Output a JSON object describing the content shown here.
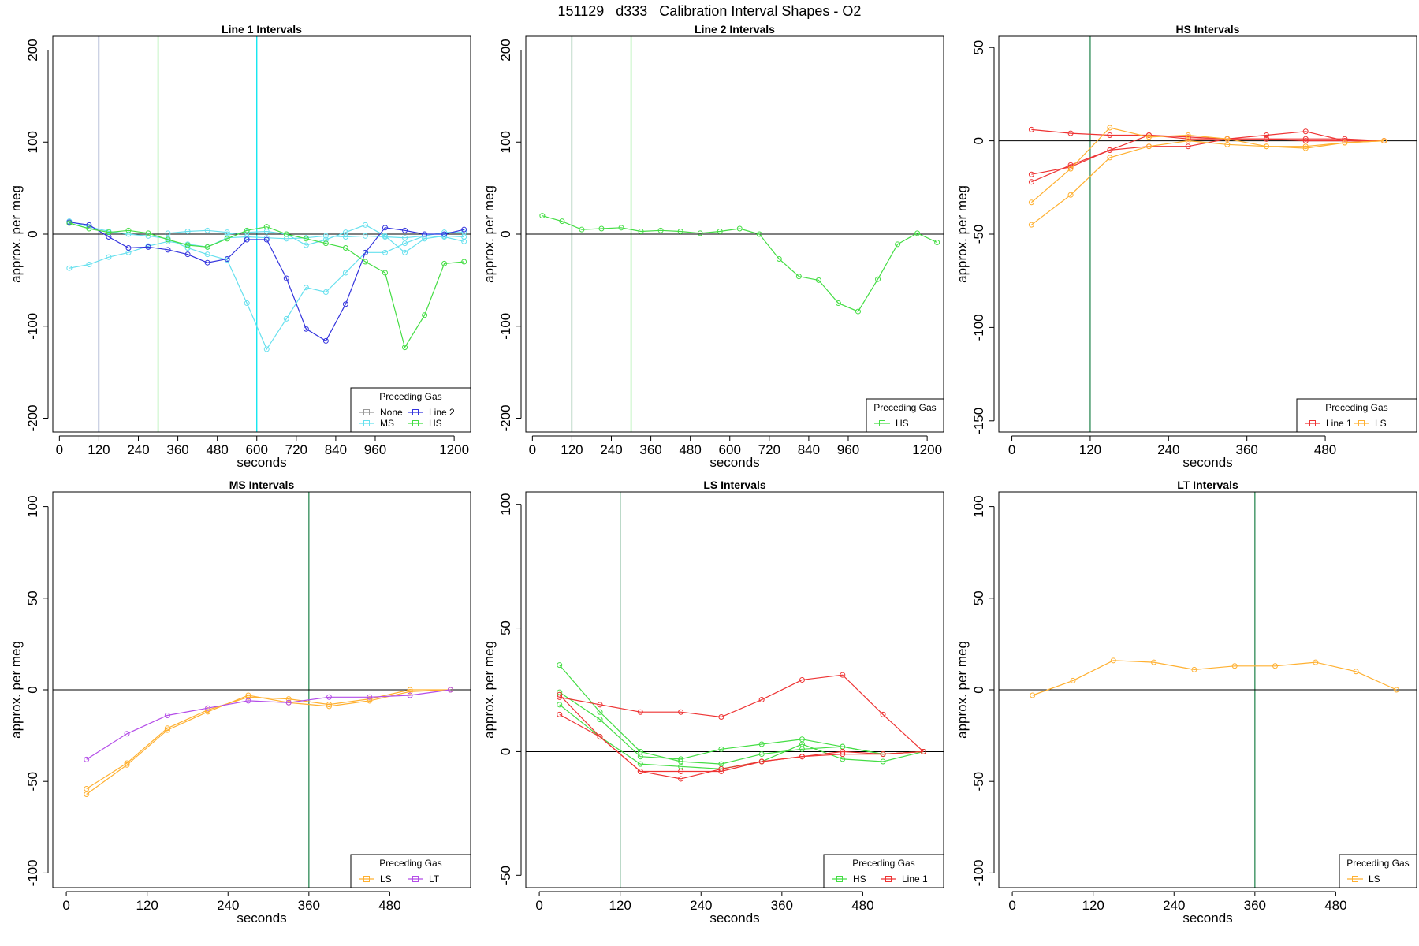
{
  "figure_title": "151129   d333   Calibration Interval Shapes - O2",
  "legend_title": "Preceding Gas",
  "chart_data": [
    {
      "type": "line",
      "title": "Line 1 Intervals",
      "xlabel": "seconds",
      "ylabel": "approx. per meg",
      "xlim": [
        -20,
        1250
      ],
      "ylim": [
        -215,
        215
      ],
      "xticks": [
        0,
        120,
        240,
        360,
        480,
        600,
        720,
        840,
        960,
        1200
      ],
      "yticks": [
        -200,
        -100,
        0,
        100,
        200
      ],
      "hline": 0,
      "vlines": [
        {
          "x": 120,
          "color": "#1e3a8a"
        },
        {
          "x": 300,
          "color": "#44dd44"
        },
        {
          "x": 600,
          "color": "#00e5ee"
        }
      ],
      "legend": {
        "position": "bottom-right",
        "columns": 2,
        "entries": [
          {
            "name": "None",
            "color": "#999999"
          },
          {
            "name": "Line 2",
            "color": "#3333dd"
          },
          {
            "name": "MS",
            "color": "#66e0ee"
          },
          {
            "name": "HS",
            "color": "#44dd44"
          }
        ]
      },
      "series": [
        {
          "name": "MS",
          "color": "#66e0ee",
          "x": [
            30,
            90,
            150,
            210,
            270,
            330,
            390,
            450,
            510,
            570,
            630,
            690,
            750,
            810,
            870,
            930,
            990,
            1050,
            1110,
            1170,
            1230
          ],
          "y": [
            -37,
            -33,
            -25,
            -20,
            -13,
            -8,
            -11,
            -14,
            -4,
            -3,
            -4,
            -5,
            -4,
            -2,
            -3,
            -2,
            -3,
            -4,
            -2,
            -3,
            -8
          ]
        },
        {
          "name": "MS",
          "color": "#66e0ee",
          "x": [
            30,
            90,
            150,
            210,
            270,
            330,
            390,
            450,
            510,
            570,
            630,
            690,
            750,
            810,
            870,
            930,
            990,
            1050,
            1110,
            1170,
            1230
          ],
          "y": [
            14,
            8,
            3,
            0,
            -2,
            -5,
            -15,
            -22,
            -28,
            -75,
            -125,
            -92,
            -58,
            -63,
            -42,
            -20,
            -20,
            -10,
            -2,
            2,
            2
          ]
        },
        {
          "name": "MS",
          "color": "#66e0ee",
          "x": [
            510,
            570,
            630,
            690,
            750,
            810,
            870,
            930,
            990,
            1050,
            1110,
            1170,
            1230
          ],
          "y": [
            0,
            2,
            3,
            0,
            -12,
            -6,
            2,
            10,
            -2,
            -20,
            -5,
            -2,
            -3
          ]
        },
        {
          "name": "MS",
          "color": "#66e0ee",
          "x": [
            330,
            390,
            450,
            510
          ],
          "y": [
            1,
            3,
            4,
            2
          ]
        },
        {
          "name": "Line 2",
          "color": "#3333dd",
          "x": [
            30,
            90,
            150,
            210,
            270,
            330,
            390,
            450,
            510,
            570,
            630,
            690,
            750,
            810,
            870,
            930,
            990,
            1050,
            1110,
            1170,
            1230
          ],
          "y": [
            13,
            10,
            -3,
            -15,
            -14,
            -17,
            -22,
            -31,
            -27,
            -6,
            -6,
            -48,
            -103,
            -116,
            -76,
            -20,
            7,
            4,
            0,
            0,
            5
          ]
        },
        {
          "name": "HS",
          "color": "#44dd44",
          "x": [
            30,
            90,
            150,
            210,
            270,
            330,
            390,
            450,
            510,
            570,
            630,
            690,
            750,
            810,
            870,
            930,
            990,
            1050,
            1110,
            1170,
            1230
          ],
          "y": [
            12,
            6,
            2,
            4,
            1,
            -6,
            -12,
            -14,
            -5,
            4,
            8,
            0,
            -5,
            -10,
            -15,
            -30,
            -42,
            -123,
            -88,
            -32,
            -30
          ]
        }
      ]
    },
    {
      "type": "line",
      "title": "Line 2 Intervals",
      "xlabel": "seconds",
      "ylabel": "approx. per meg",
      "xlim": [
        -20,
        1250
      ],
      "ylim": [
        -215,
        215
      ],
      "xticks": [
        0,
        120,
        240,
        360,
        480,
        600,
        720,
        840,
        960,
        1200
      ],
      "yticks": [
        -200,
        -100,
        0,
        100,
        200
      ],
      "hline": 0,
      "vlines": [
        {
          "x": 120,
          "color": "#2e8b57"
        },
        {
          "x": 300,
          "color": "#44dd44"
        }
      ],
      "legend": {
        "position": "bottom-right",
        "columns": 1,
        "entries": [
          {
            "name": "HS",
            "color": "#44dd44"
          }
        ]
      },
      "series": [
        {
          "name": "HS",
          "color": "#44dd44",
          "x": [
            30,
            90,
            150,
            210,
            270,
            330,
            390,
            450,
            510,
            570,
            630,
            690,
            750,
            810,
            870,
            930,
            990,
            1050,
            1110,
            1170,
            1230
          ],
          "y": [
            20,
            14,
            5,
            6,
            7,
            3,
            4,
            3,
            1,
            3,
            6,
            0,
            -27,
            -46,
            -50,
            -75,
            -84,
            -49,
            -11,
            1,
            -9
          ]
        }
      ]
    },
    {
      "type": "line",
      "title": "HS Intervals",
      "xlabel": "seconds",
      "ylabel": "approx. per meg",
      "xlim": [
        -20,
        620
      ],
      "ylim": [
        -156,
        56
      ],
      "xticks": [
        0,
        120,
        240,
        360,
        480
      ],
      "yticks": [
        -150,
        -100,
        -50,
        0,
        50
      ],
      "hline": 0,
      "vlines": [
        {
          "x": 120,
          "color": "#2e8b57"
        }
      ],
      "legend": {
        "position": "bottom-right",
        "columns": 2,
        "entries": [
          {
            "name": "Line 1",
            "color": "#ee3333"
          },
          {
            "name": "LS",
            "color": "#ffb030"
          }
        ]
      },
      "series": [
        {
          "name": "Line 1",
          "color": "#ee3333",
          "x": [
            30,
            90,
            150,
            210,
            270,
            330,
            390,
            450,
            510,
            570
          ],
          "y": [
            6,
            4,
            3,
            3,
            2,
            1,
            1,
            0,
            0,
            0
          ]
        },
        {
          "name": "Line 1",
          "color": "#ee3333",
          "x": [
            30,
            90,
            150,
            210,
            270,
            330,
            390,
            450,
            510,
            570
          ],
          "y": [
            -18,
            -14,
            -5,
            -3,
            -3,
            1,
            3,
            5,
            0,
            0
          ]
        },
        {
          "name": "Line 1",
          "color": "#ee3333",
          "x": [
            30,
            90,
            150,
            210,
            270,
            330,
            390,
            450,
            510,
            570
          ],
          "y": [
            -22,
            -13,
            -5,
            3,
            1,
            1,
            1,
            1,
            1,
            0
          ]
        },
        {
          "name": "LS",
          "color": "#ffb030",
          "x": [
            30,
            90,
            150,
            210,
            270,
            330,
            390,
            450,
            510,
            570
          ],
          "y": [
            -33,
            -15,
            7,
            2,
            3,
            1,
            -3,
            -3,
            -1,
            0
          ]
        },
        {
          "name": "LS",
          "color": "#ffb030",
          "x": [
            30,
            90,
            150,
            210,
            270,
            330,
            390,
            450,
            510,
            570
          ],
          "y": [
            -45,
            -29,
            -9,
            -3,
            0,
            -2,
            -3,
            -4,
            -1,
            0
          ]
        }
      ]
    },
    {
      "type": "line",
      "title": "MS Intervals",
      "xlabel": "seconds",
      "ylabel": "approx. per meg",
      "xlim": [
        -20,
        600
      ],
      "ylim": [
        -108,
        108
      ],
      "xticks": [
        0,
        120,
        240,
        360,
        480
      ],
      "yticks": [
        -100,
        -50,
        0,
        50,
        100
      ],
      "hline": 0,
      "vlines": [
        {
          "x": 360,
          "color": "#2e8b57"
        }
      ],
      "legend": {
        "position": "bottom-right",
        "columns": 2,
        "entries": [
          {
            "name": "LS",
            "color": "#ffb030"
          },
          {
            "name": "LT",
            "color": "#b44de8"
          }
        ]
      },
      "series": [
        {
          "name": "LS",
          "color": "#ffb030",
          "x": [
            30,
            90,
            150,
            210,
            270,
            330,
            390,
            450,
            510,
            570
          ],
          "y": [
            -54,
            -40,
            -21,
            -11,
            -4,
            -5,
            -8,
            -5,
            0,
            0
          ]
        },
        {
          "name": "LS",
          "color": "#ffb030",
          "x": [
            30,
            90,
            150,
            210,
            270,
            330,
            390,
            450,
            510,
            570
          ],
          "y": [
            -57,
            -41,
            -22,
            -12,
            -3,
            -7,
            -9,
            -6,
            -1,
            0
          ]
        },
        {
          "name": "LT",
          "color": "#b44de8",
          "x": [
            30,
            90,
            150,
            210,
            270,
            330,
            390,
            450,
            510,
            570
          ],
          "y": [
            -38,
            -24,
            -14,
            -10,
            -6,
            -7,
            -4,
            -4,
            -3,
            0
          ]
        }
      ]
    },
    {
      "type": "line",
      "title": "LS Intervals",
      "xlabel": "seconds",
      "ylabel": "approx. per meg",
      "xlim": [
        -20,
        600
      ],
      "ylim": [
        -55,
        105
      ],
      "xticks": [
        0,
        120,
        240,
        360,
        480
      ],
      "yticks": [
        -50,
        0,
        50,
        100
      ],
      "hline": 0,
      "vlines": [
        {
          "x": 120,
          "color": "#2e8b57"
        }
      ],
      "legend": {
        "position": "bottom-right",
        "columns": 2,
        "entries": [
          {
            "name": "HS",
            "color": "#44dd44"
          },
          {
            "name": "Line 1",
            "color": "#ee3333"
          }
        ]
      },
      "series": [
        {
          "name": "HS",
          "color": "#44dd44",
          "x": [
            30,
            90,
            150,
            210,
            270,
            330,
            390,
            450,
            510,
            570
          ],
          "y": [
            35,
            16,
            0,
            -4,
            -5,
            -1,
            1,
            2,
            -1,
            0
          ]
        },
        {
          "name": "HS",
          "color": "#44dd44",
          "x": [
            30,
            90,
            150,
            210,
            270,
            330,
            390,
            450,
            510,
            570
          ],
          "y": [
            24,
            13,
            -2,
            -3,
            1,
            3,
            5,
            2,
            -1,
            0
          ]
        },
        {
          "name": "HS",
          "color": "#44dd44",
          "x": [
            30,
            90,
            150,
            210,
            270,
            330,
            390,
            450,
            510,
            570
          ],
          "y": [
            19,
            6,
            -5,
            -6,
            -7,
            -4,
            3,
            -3,
            -4,
            0
          ]
        },
        {
          "name": "Line 1",
          "color": "#ee3333",
          "x": [
            30,
            90,
            150,
            210,
            270,
            330,
            390,
            450,
            510,
            570
          ],
          "y": [
            22,
            19,
            16,
            16,
            14,
            21,
            29,
            31,
            15,
            0
          ]
        },
        {
          "name": "Line 1",
          "color": "#ee3333",
          "x": [
            30,
            90,
            150,
            210,
            270,
            330,
            390,
            450,
            510,
            570
          ],
          "y": [
            23,
            6,
            -8,
            -8,
            -8,
            -4,
            -2,
            0,
            -1,
            0
          ]
        },
        {
          "name": "Line 1",
          "color": "#ee3333",
          "x": [
            30,
            90,
            150,
            210,
            270,
            330,
            390,
            450,
            510,
            570
          ],
          "y": [
            15,
            6,
            -8,
            -11,
            -7,
            -4,
            -2,
            -1,
            -1,
            0
          ]
        }
      ]
    },
    {
      "type": "line",
      "title": "LT Intervals",
      "xlabel": "seconds",
      "ylabel": "approx. per meg",
      "xlim": [
        -20,
        600
      ],
      "ylim": [
        -108,
        108
      ],
      "xticks": [
        0,
        120,
        240,
        360,
        480
      ],
      "yticks": [
        -100,
        -50,
        0,
        50,
        100
      ],
      "hline": 0,
      "vlines": [
        {
          "x": 360,
          "color": "#2e8b57"
        }
      ],
      "legend": {
        "position": "bottom-right",
        "columns": 1,
        "entries": [
          {
            "name": "LS",
            "color": "#ffb030"
          }
        ]
      },
      "series": [
        {
          "name": "LS",
          "color": "#ffb030",
          "x": [
            30,
            90,
            150,
            210,
            270,
            330,
            390,
            450,
            510,
            570
          ],
          "y": [
            -3,
            5,
            16,
            15,
            11,
            13,
            13,
            15,
            10,
            0
          ]
        }
      ]
    }
  ]
}
